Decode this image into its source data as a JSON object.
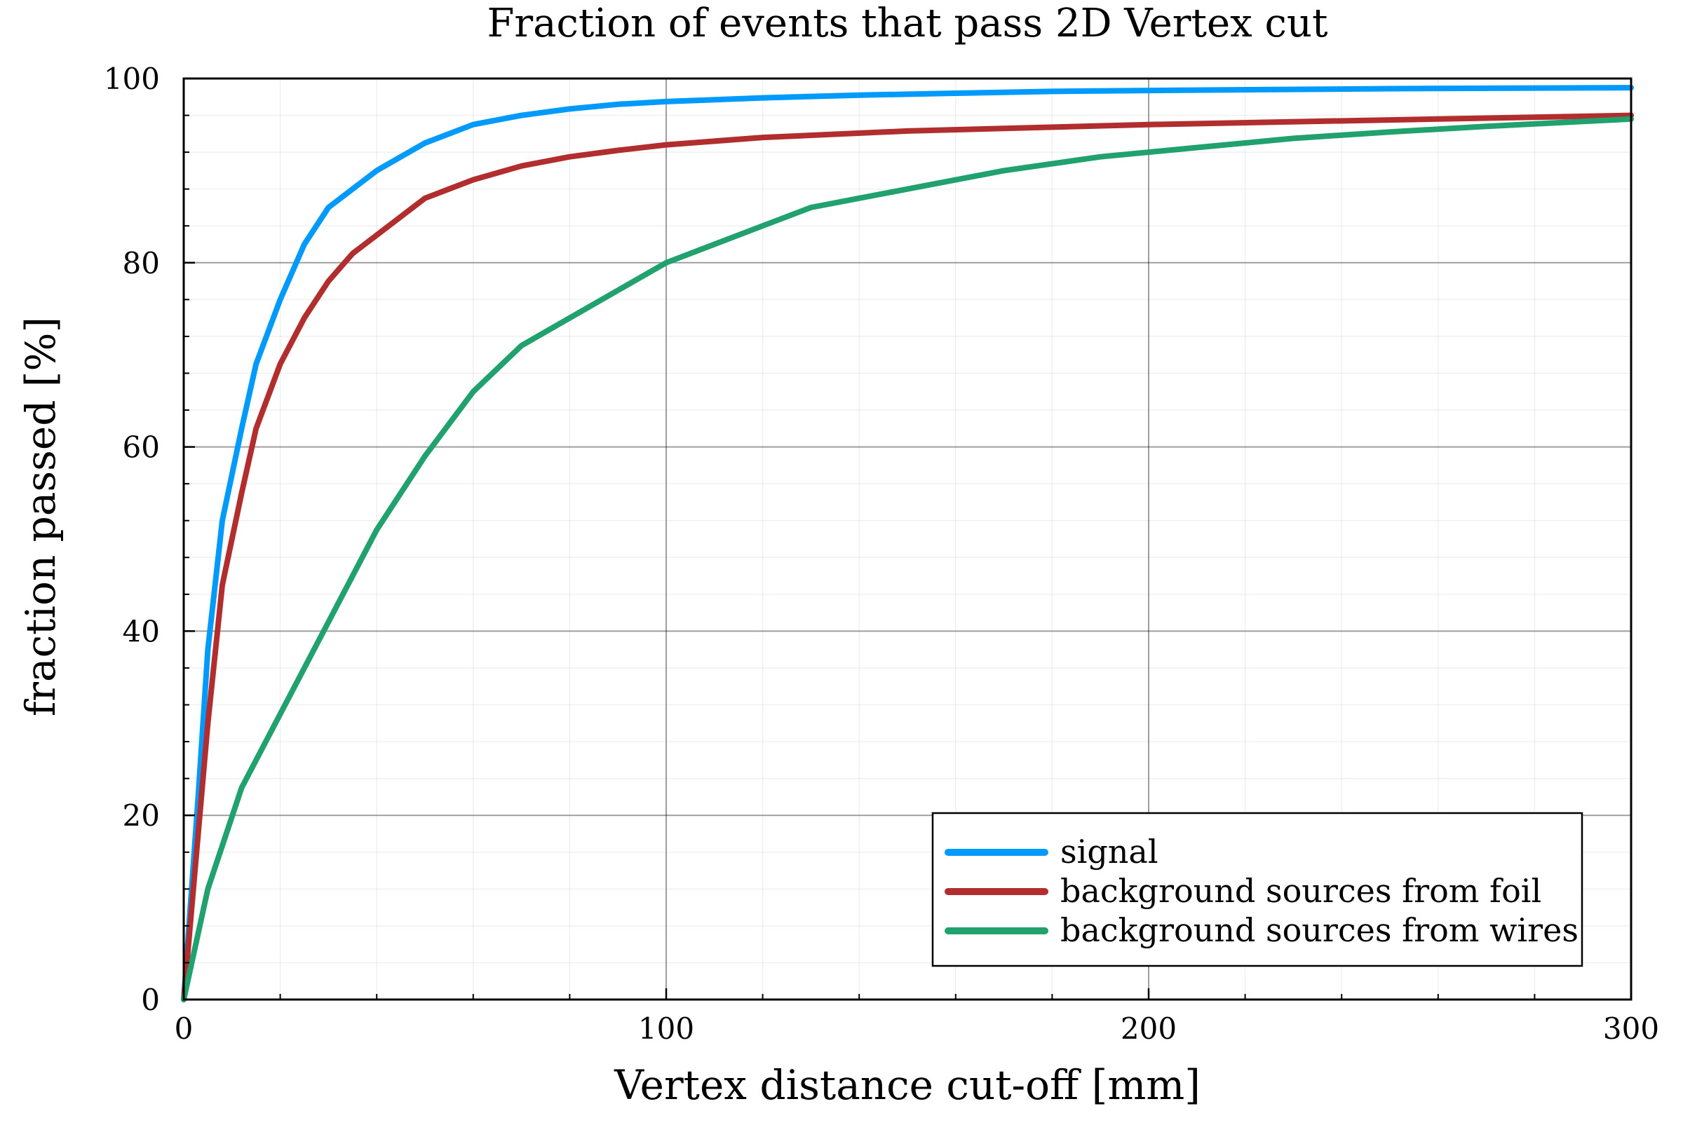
{
  "chart_data": {
    "type": "line",
    "title": "Fraction of events that pass 2D Vertex cut",
    "xlabel": "Vertex distance cut-off [mm]",
    "ylabel": "fraction passed [%]",
    "xlim": [
      0,
      300
    ],
    "ylim": [
      0,
      100
    ],
    "x_ticks": [
      "0",
      "100",
      "200",
      "300"
    ],
    "y_ticks": [
      "0",
      "20",
      "40",
      "60",
      "80",
      "100"
    ],
    "grid": true,
    "legend_position": "bottom-right",
    "series": [
      {
        "name": "signal",
        "color": "#009AFA",
        "x": [
          0,
          3,
          5,
          8,
          12,
          15,
          20,
          25,
          30,
          40,
          50,
          60,
          70,
          80,
          90,
          100,
          120,
          140,
          160,
          180,
          200,
          250,
          300
        ],
        "y": [
          0,
          22,
          38,
          52,
          62,
          69,
          76,
          82,
          86,
          90,
          93,
          95,
          96,
          96.7,
          97.2,
          97.5,
          97.9,
          98.2,
          98.4,
          98.6,
          98.7,
          98.9,
          99.0
        ]
      },
      {
        "name": "background sources from foil",
        "color": "#B22E2E",
        "x": [
          0,
          3,
          5,
          8,
          12,
          15,
          20,
          25,
          30,
          35,
          40,
          50,
          60,
          70,
          80,
          90,
          100,
          120,
          150,
          200,
          250,
          300
        ],
        "y": [
          0,
          18,
          30,
          45,
          55,
          62,
          69,
          74,
          78,
          81,
          83,
          87,
          89,
          90.5,
          91.5,
          92.2,
          92.8,
          93.6,
          94.3,
          95.0,
          95.5,
          96.0
        ]
      },
      {
        "name": "background sources from wires",
        "color": "#20A16E",
        "x": [
          0,
          5,
          12,
          20,
          30,
          40,
          50,
          60,
          70,
          80,
          90,
          100,
          110,
          120,
          130,
          140,
          150,
          170,
          190,
          210,
          230,
          250,
          270,
          300
        ],
        "y": [
          0,
          12,
          23,
          31,
          41,
          51,
          59,
          66,
          71,
          74,
          77,
          80,
          82,
          84,
          86,
          87,
          88,
          90,
          91.5,
          92.5,
          93.5,
          94.2,
          94.8,
          95.6
        ]
      }
    ]
  }
}
